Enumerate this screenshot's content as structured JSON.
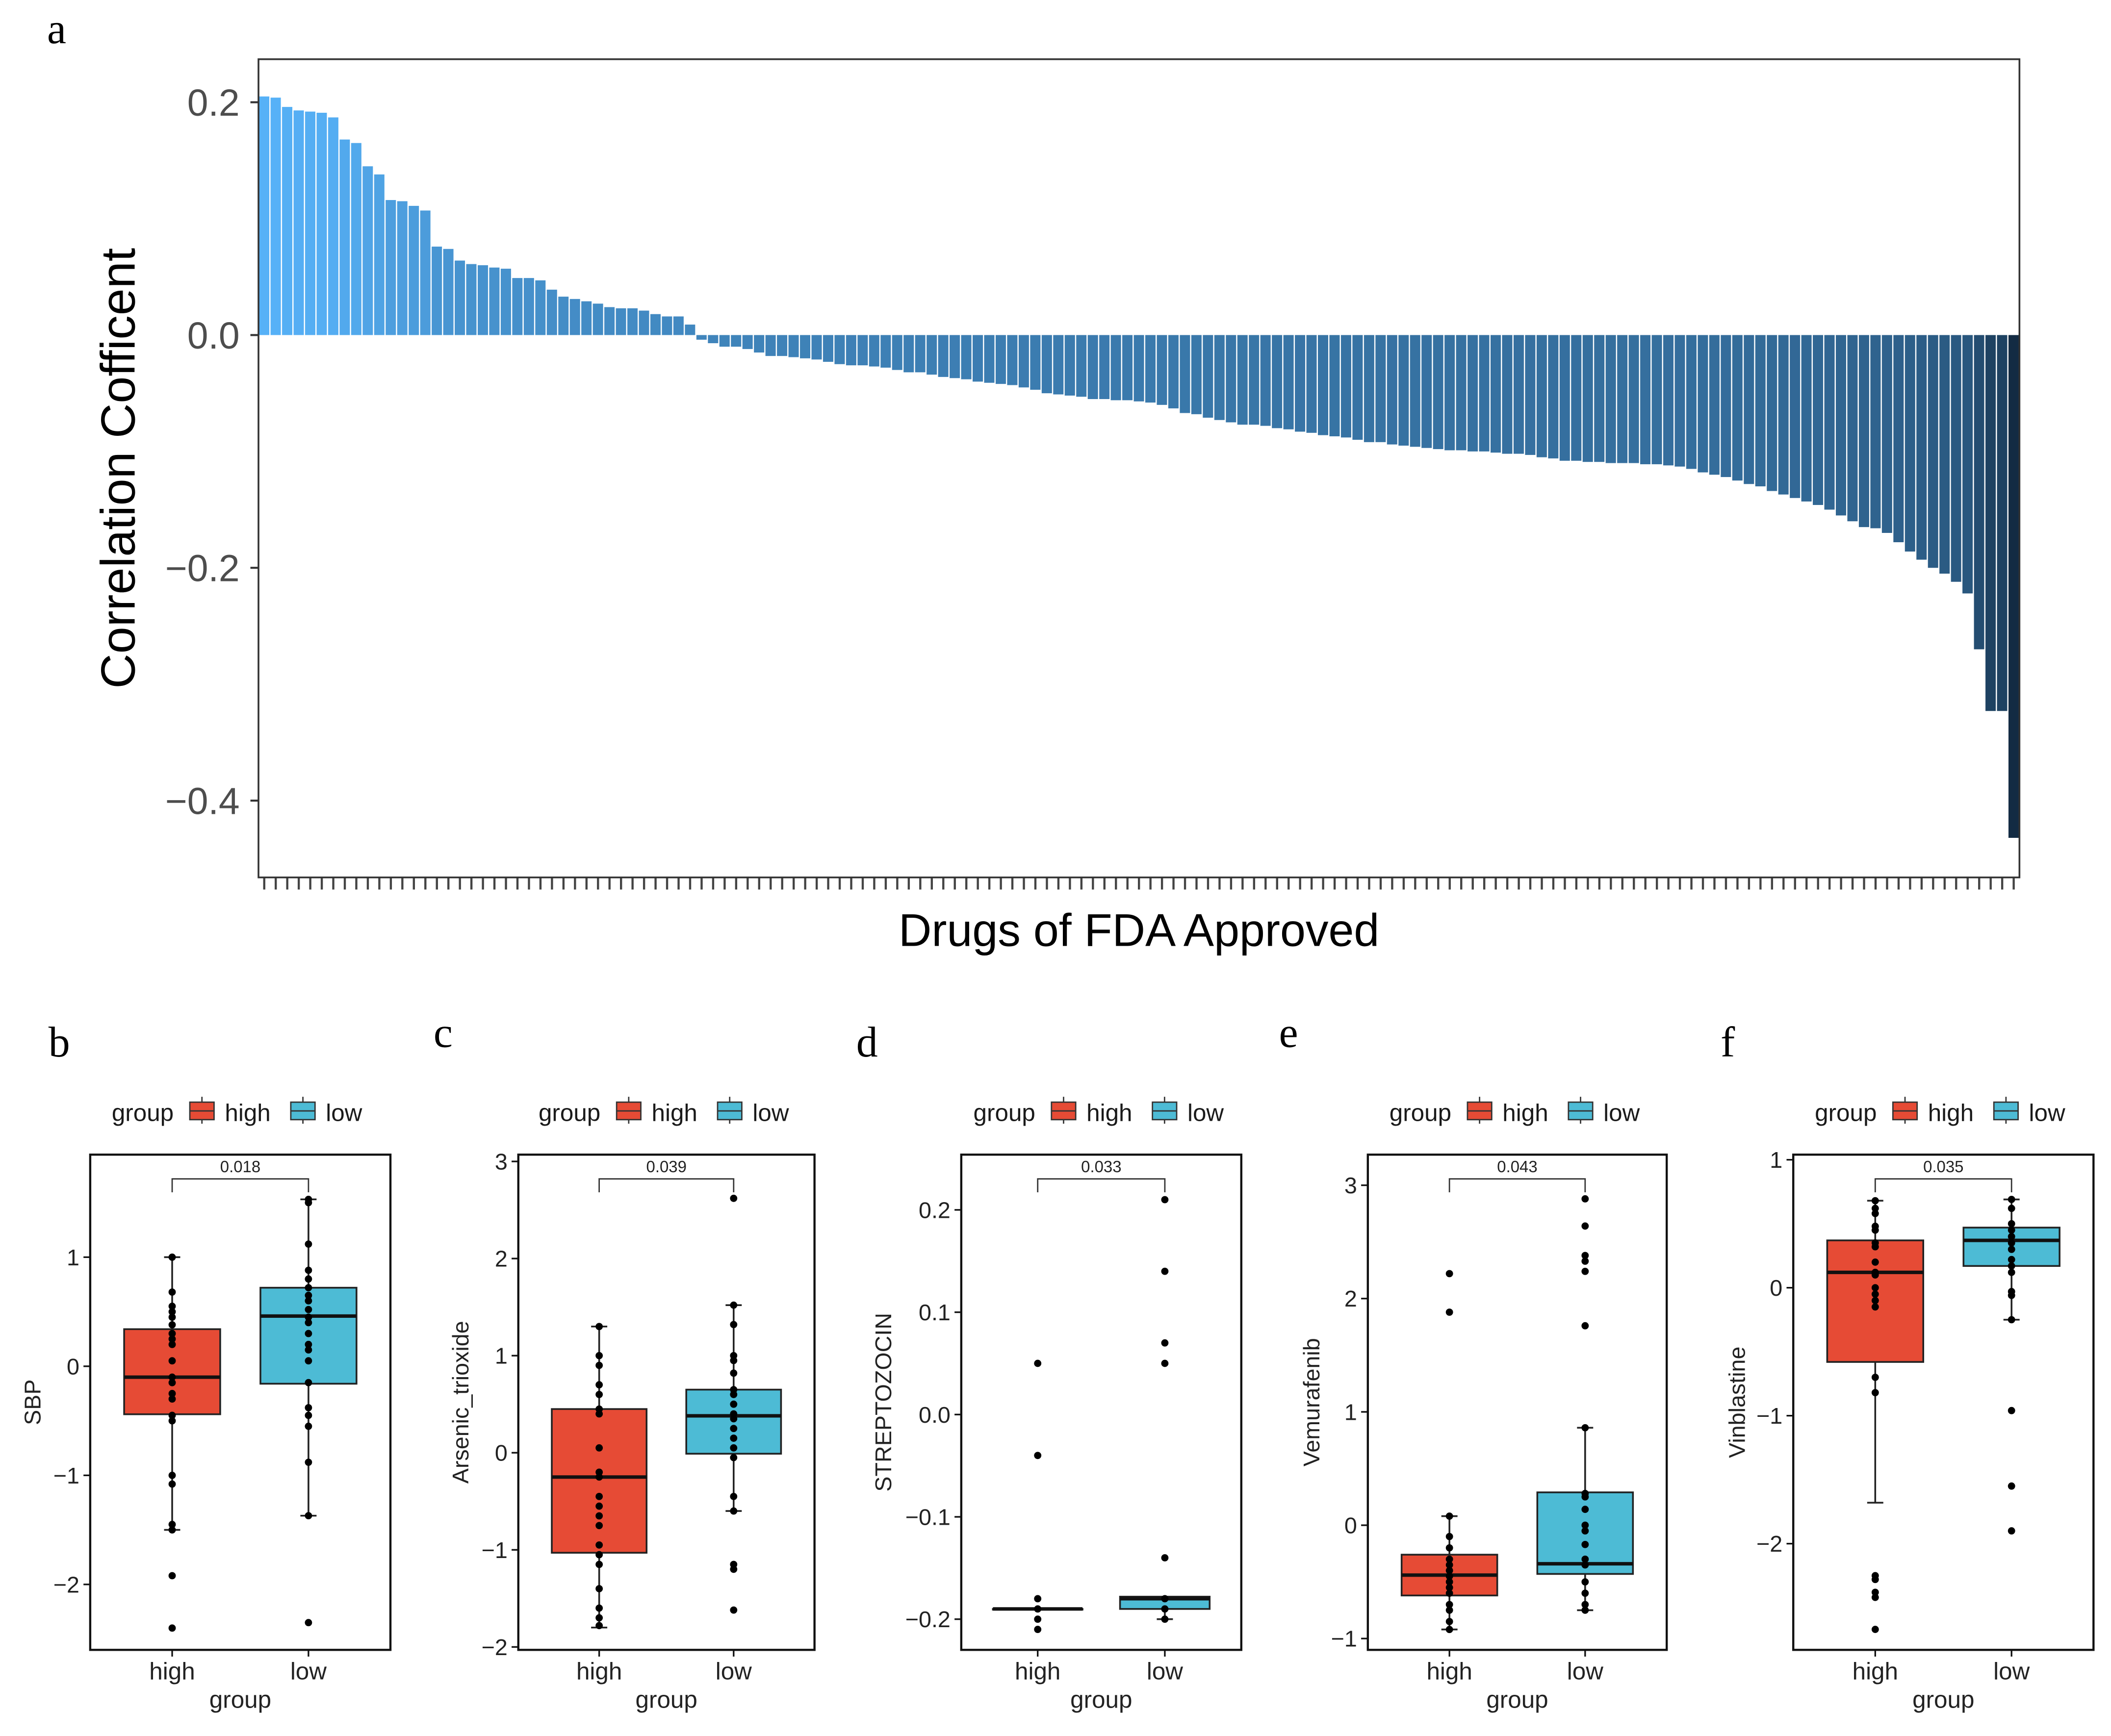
{
  "chart_data": [
    {
      "type": "bar",
      "panel_label": "a",
      "ylabel": "Correlation Cofficent",
      "xlabel": "Drugs of FDA Approved",
      "ylim": [
        -0.466,
        0.237
      ],
      "yticks": [
        0.2,
        0.0,
        -0.2,
        -0.4
      ],
      "ytick_labels": [
        "0.2",
        "0.0",
        "−0.2",
        "−0.4"
      ],
      "color_low": "#132B43",
      "color_high": "#56B1F7",
      "values": [
        0.205,
        0.204,
        0.196,
        0.193,
        0.192,
        0.191,
        0.187,
        0.168,
        0.165,
        0.145,
        0.138,
        0.116,
        0.115,
        0.111,
        0.107,
        0.076,
        0.074,
        0.064,
        0.061,
        0.06,
        0.058,
        0.057,
        0.049,
        0.049,
        0.047,
        0.039,
        0.033,
        0.031,
        0.029,
        0.027,
        0.024,
        0.023,
        0.023,
        0.021,
        0.018,
        0.016,
        0.016,
        0.009,
        -0.004,
        -0.007,
        -0.01,
        -0.01,
        -0.012,
        -0.015,
        -0.018,
        -0.018,
        -0.019,
        -0.02,
        -0.021,
        -0.023,
        -0.025,
        -0.026,
        -0.026,
        -0.027,
        -0.028,
        -0.03,
        -0.032,
        -0.032,
        -0.034,
        -0.036,
        -0.037,
        -0.038,
        -0.04,
        -0.041,
        -0.042,
        -0.043,
        -0.045,
        -0.047,
        -0.05,
        -0.051,
        -0.052,
        -0.053,
        -0.055,
        -0.055,
        -0.056,
        -0.056,
        -0.057,
        -0.058,
        -0.06,
        -0.063,
        -0.067,
        -0.068,
        -0.071,
        -0.073,
        -0.075,
        -0.077,
        -0.077,
        -0.078,
        -0.08,
        -0.081,
        -0.083,
        -0.084,
        -0.086,
        -0.087,
        -0.088,
        -0.09,
        -0.092,
        -0.092,
        -0.094,
        -0.095,
        -0.096,
        -0.097,
        -0.098,
        -0.099,
        -0.099,
        -0.1,
        -0.1,
        -0.101,
        -0.102,
        -0.102,
        -0.103,
        -0.105,
        -0.106,
        -0.108,
        -0.108,
        -0.109,
        -0.109,
        -0.11,
        -0.11,
        -0.11,
        -0.111,
        -0.111,
        -0.112,
        -0.113,
        -0.115,
        -0.118,
        -0.12,
        -0.122,
        -0.125,
        -0.128,
        -0.13,
        -0.134,
        -0.137,
        -0.14,
        -0.143,
        -0.146,
        -0.15,
        -0.155,
        -0.16,
        -0.165,
        -0.166,
        -0.17,
        -0.178,
        -0.186,
        -0.193,
        -0.2,
        -0.205,
        -0.212,
        -0.222,
        -0.27,
        -0.323,
        -0.323,
        -0.432
      ]
    },
    {
      "type": "box",
      "panel_label": "b",
      "ylabel": "SBP",
      "xlabel": "group",
      "categories": [
        "high",
        "low"
      ],
      "legend": {
        "title": "group",
        "entries": [
          "high",
          "low"
        ],
        "placement": "top"
      },
      "p_value": "0.018",
      "ylim": [
        -2.6,
        1.94
      ],
      "yticks": [
        1,
        0,
        -1,
        -2
      ],
      "ytick_labels": [
        "1",
        "0",
        "−1",
        "−2"
      ],
      "colors": [
        "#E64B35",
        "#4DBBD5"
      ],
      "groups": [
        {
          "name": "high",
          "q1": -0.44,
          "median": -0.1,
          "q3": 0.34,
          "whisker_low": -1.5,
          "whisker_high": 1.0,
          "points": [
            1.0,
            0.68,
            0.55,
            0.5,
            0.45,
            0.38,
            0.3,
            0.25,
            0.2,
            0.05,
            -0.1,
            -0.15,
            -0.25,
            -0.3,
            -0.45,
            -0.5,
            -1.0,
            -1.08,
            -1.45,
            -1.5,
            -1.92,
            -2.4
          ]
        },
        {
          "name": "low",
          "q1": -0.16,
          "median": 0.46,
          "q3": 0.72,
          "whisker_low": -1.37,
          "whisker_high": 1.53,
          "points": [
            1.53,
            1.5,
            1.12,
            0.88,
            0.8,
            0.72,
            0.65,
            0.6,
            0.52,
            0.45,
            0.4,
            0.3,
            0.2,
            0.15,
            0.05,
            -0.15,
            -0.38,
            -0.45,
            -0.55,
            -0.88,
            -1.37,
            -2.35
          ]
        }
      ]
    },
    {
      "type": "box",
      "panel_label": "c",
      "ylabel": "Arsenic_trioxide",
      "xlabel": "group",
      "categories": [
        "high",
        "low"
      ],
      "legend": {
        "title": "group",
        "entries": [
          "high",
          "low"
        ],
        "placement": "top"
      },
      "p_value": "0.039",
      "ylim": [
        -2.03,
        3.07
      ],
      "yticks": [
        3,
        2,
        1,
        0,
        -1,
        -2
      ],
      "ytick_labels": [
        "3",
        "2",
        "1",
        "0",
        "−1",
        "−2"
      ],
      "colors": [
        "#E64B35",
        "#4DBBD5"
      ],
      "groups": [
        {
          "name": "high",
          "q1": -1.03,
          "median": -0.25,
          "q3": 0.45,
          "whisker_low": -1.8,
          "whisker_high": 1.3,
          "points": [
            1.3,
            1.0,
            0.9,
            0.7,
            0.6,
            0.45,
            0.4,
            0.05,
            -0.2,
            -0.25,
            -0.45,
            -0.55,
            -0.65,
            -0.75,
            -0.95,
            -1.05,
            -1.15,
            -1.4,
            -1.6,
            -1.7,
            -1.78
          ]
        },
        {
          "name": "low",
          "q1": -0.01,
          "median": 0.38,
          "q3": 0.65,
          "whisker_low": -0.6,
          "whisker_high": 1.52,
          "points": [
            2.62,
            1.52,
            1.32,
            1.0,
            0.95,
            0.82,
            0.65,
            0.6,
            0.5,
            0.4,
            0.35,
            0.25,
            0.15,
            0.05,
            -0.05,
            -0.45,
            -0.6,
            -1.15,
            -1.2,
            -1.62
          ]
        }
      ]
    },
    {
      "type": "box",
      "panel_label": "d",
      "ylabel": "STREPTOZOCIN",
      "xlabel": "group",
      "categories": [
        "high",
        "low"
      ],
      "legend": {
        "title": "group",
        "entries": [
          "high",
          "low"
        ],
        "placement": "top"
      },
      "p_value": "0.033",
      "ylim": [
        -0.23,
        0.254
      ],
      "yticks": [
        0.2,
        0.1,
        0.0,
        -0.1,
        -0.2
      ],
      "ytick_labels": [
        "0.2",
        "0.1",
        "0.0",
        "−0.1",
        "−0.2"
      ],
      "colors": [
        "#E64B35",
        "#4DBBD5"
      ],
      "groups": [
        {
          "name": "high",
          "q1": -0.19,
          "median": -0.19,
          "q3": -0.19,
          "whisker_low": -0.19,
          "whisker_high": -0.19,
          "points": [
            0.05,
            -0.04,
            -0.18,
            -0.19,
            -0.2,
            -0.21
          ]
        },
        {
          "name": "low",
          "q1": -0.19,
          "median": -0.18,
          "q3": -0.178,
          "whisker_low": -0.2,
          "whisker_high": -0.178,
          "points": [
            0.21,
            0.14,
            0.07,
            0.05,
            -0.14,
            -0.18,
            -0.19,
            -0.2
          ]
        }
      ]
    },
    {
      "type": "box",
      "panel_label": "e",
      "ylabel": "Vemurafenib",
      "xlabel": "group",
      "categories": [
        "high",
        "low"
      ],
      "legend": {
        "title": "group",
        "entries": [
          "high",
          "low"
        ],
        "placement": "top"
      },
      "p_value": "0.043",
      "ylim": [
        -1.1,
        3.27
      ],
      "yticks": [
        3,
        2,
        1,
        0,
        -1
      ],
      "ytick_labels": [
        "3",
        "2",
        "1",
        "0",
        "−1"
      ],
      "colors": [
        "#E64B35",
        "#4DBBD5"
      ],
      "groups": [
        {
          "name": "high",
          "q1": -0.62,
          "median": -0.44,
          "q3": -0.26,
          "whisker_low": -0.92,
          "whisker_high": 0.08,
          "points": [
            2.22,
            1.88,
            0.08,
            -0.1,
            -0.2,
            -0.3,
            -0.35,
            -0.4,
            -0.45,
            -0.5,
            -0.55,
            -0.6,
            -0.7,
            -0.75,
            -0.85,
            -0.92
          ]
        },
        {
          "name": "low",
          "q1": -0.43,
          "median": -0.34,
          "q3": 0.29,
          "whisker_low": -0.75,
          "whisker_high": 0.86,
          "points": [
            2.88,
            2.64,
            2.38,
            2.33,
            2.24,
            1.76,
            0.86,
            0.28,
            0.25,
            0.14,
            0.0,
            -0.05,
            -0.17,
            -0.3,
            -0.35,
            -0.5,
            -0.6,
            -0.7,
            -0.75
          ]
        }
      ]
    },
    {
      "type": "box",
      "panel_label": "f",
      "ylabel": "Vinblastine",
      "xlabel": "group",
      "categories": [
        "high",
        "low"
      ],
      "legend": {
        "title": "group",
        "entries": [
          "high",
          "low"
        ],
        "placement": "top"
      },
      "p_value": "0.035",
      "ylim": [
        -2.83,
        1.04
      ],
      "yticks": [
        1,
        0,
        -1,
        -2
      ],
      "ytick_labels": [
        "1",
        "0",
        "−1",
        "−2"
      ],
      "colors": [
        "#E64B35",
        "#4DBBD5"
      ],
      "groups": [
        {
          "name": "high",
          "q1": -0.58,
          "median": 0.12,
          "q3": 0.37,
          "whisker_low": -1.68,
          "whisker_high": 0.68,
          "points": [
            0.68,
            0.62,
            0.58,
            0.48,
            0.45,
            0.35,
            0.32,
            0.2,
            0.12,
            0.1,
            0.0,
            -0.05,
            -0.1,
            -0.15,
            -0.7,
            -0.82,
            -2.25,
            -2.28,
            -2.38,
            -2.42,
            -2.67
          ]
        },
        {
          "name": "low",
          "q1": 0.17,
          "median": 0.37,
          "q3": 0.47,
          "whisker_low": -0.25,
          "whisker_high": 0.69,
          "points": [
            0.69,
            0.62,
            0.5,
            0.45,
            0.4,
            0.35,
            0.3,
            0.22,
            0.17,
            0.12,
            -0.03,
            -0.06,
            -0.25,
            -0.96,
            -1.55,
            -1.9
          ]
        }
      ]
    }
  ]
}
